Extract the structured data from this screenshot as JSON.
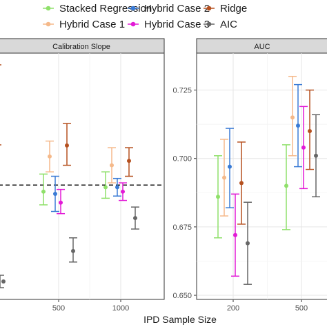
{
  "legend": [
    {
      "name": "Stacked Regression",
      "color": "#8fe06a"
    },
    {
      "name": "Hybrid Case 2",
      "color": "#3a7bd5"
    },
    {
      "name": "Ridge",
      "color": "#b5501f"
    },
    {
      "name": "Hybrid Case 1",
      "color": "#f5b98a"
    },
    {
      "name": "Hybrid Case 3",
      "color": "#e21ad6"
    },
    {
      "name": "AIC",
      "color": "#666666"
    }
  ],
  "xlabel": "IPD Sample Size",
  "chart_data": [
    {
      "type": "scatter",
      "title": "Calibration Slope",
      "x_ticks": [
        "500",
        "1000"
      ],
      "y_ticks": [],
      "reference_line": 1.0,
      "ylim": [
        0.74,
        1.3
      ],
      "series": [
        {
          "name": "Stacked Regression",
          "points": [
            {
              "x": "500",
              "y": 0.985,
              "lo": 0.955,
              "hi": 1.025
            },
            {
              "x": "1000",
              "y": 0.995,
              "lo": 0.97,
              "hi": 1.03
            }
          ]
        },
        {
          "name": "Hybrid Case 1",
          "points": [
            {
              "x": "500",
              "y": 1.065,
              "lo": 1.03,
              "hi": 1.1
            },
            {
              "x": "1000",
              "y": 1.045,
              "lo": 1.005,
              "hi": 1.085
            }
          ]
        },
        {
          "name": "Hybrid Case 2",
          "points": [
            {
              "x": "500",
              "y": 0.98,
              "lo": 0.94,
              "hi": 1.02
            },
            {
              "x": "1000",
              "y": 0.995,
              "lo": 0.975,
              "hi": 1.015
            }
          ]
        },
        {
          "name": "Hybrid Case 3",
          "points": [
            {
              "x": "500",
              "y": 0.96,
              "lo": 0.935,
              "hi": 0.99
            },
            {
              "x": "1000",
              "y": 0.985,
              "lo": 0.965,
              "hi": 1.005
            }
          ]
        },
        {
          "name": "Ridge",
          "points": [
            {
              "x": "500",
              "y": 1.09,
              "lo": 1.045,
              "hi": 1.14
            },
            {
              "x": "1000",
              "y": 1.055,
              "lo": 1.02,
              "hi": 1.085
            }
          ]
        },
        {
          "name": "AIC",
          "points": [
            {
              "x": "500",
              "y": 0.85,
              "lo": 0.825,
              "hi": 0.88
            },
            {
              "x": "1000",
              "y": 0.925,
              "lo": 0.9,
              "hi": 0.95
            }
          ]
        }
      ]
    },
    {
      "type": "scatter",
      "title": "AUC",
      "x_ticks": [
        "200",
        "500"
      ],
      "y_ticks": [
        "0.650",
        "0.675",
        "0.700",
        "0.725"
      ],
      "ylim": [
        0.6485,
        0.7385
      ],
      "series": [
        {
          "name": "Stacked Regression",
          "points": [
            {
              "x": "200",
              "y": 0.686,
              "lo": 0.671,
              "hi": 0.701
            },
            {
              "x": "500",
              "y": 0.69,
              "lo": 0.674,
              "hi": 0.705
            }
          ]
        },
        {
          "name": "Hybrid Case 1",
          "points": [
            {
              "x": "200",
              "y": 0.693,
              "lo": 0.679,
              "hi": 0.707
            },
            {
              "x": "500",
              "y": 0.715,
              "lo": 0.701,
              "hi": 0.73
            }
          ]
        },
        {
          "name": "Hybrid Case 2",
          "points": [
            {
              "x": "200",
              "y": 0.697,
              "lo": 0.682,
              "hi": 0.711
            },
            {
              "x": "500",
              "y": 0.712,
              "lo": 0.697,
              "hi": 0.727
            }
          ]
        },
        {
          "name": "Hybrid Case 3",
          "points": [
            {
              "x": "200",
              "y": 0.672,
              "lo": 0.657,
              "hi": 0.687
            },
            {
              "x": "500",
              "y": 0.704,
              "lo": 0.689,
              "hi": 0.719
            }
          ]
        },
        {
          "name": "Ridge",
          "points": [
            {
              "x": "200",
              "y": 0.691,
              "lo": 0.676,
              "hi": 0.706
            },
            {
              "x": "500",
              "y": 0.71,
              "lo": 0.696,
              "hi": 0.725
            }
          ]
        },
        {
          "name": "AIC",
          "points": [
            {
              "x": "200",
              "y": 0.669,
              "lo": 0.654,
              "hi": 0.684
            },
            {
              "x": "500",
              "y": 0.701,
              "lo": 0.686,
              "hi": 0.716
            }
          ]
        }
      ]
    }
  ]
}
